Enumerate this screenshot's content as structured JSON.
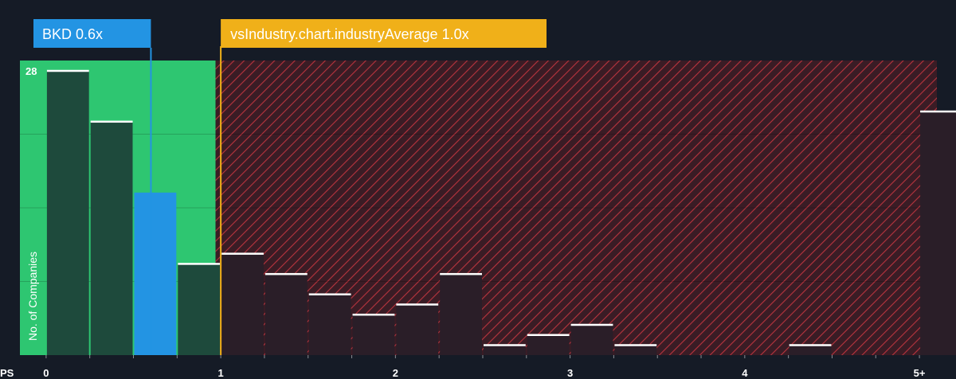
{
  "chart_data": {
    "type": "bar",
    "xlabel": "PS",
    "ylabel": "No. of Companies",
    "x_tick_labels": [
      "0",
      "1",
      "2",
      "3",
      "4",
      "5+"
    ],
    "x_tick_values": [
      0,
      1,
      2,
      3,
      4,
      5
    ],
    "y_tick_labels": [
      "28"
    ],
    "y_tick_values": [
      28
    ],
    "ylim": [
      0,
      29
    ],
    "xlim": [
      -0.15,
      5.1
    ],
    "bin_width": 0.25,
    "bins": [
      {
        "x0": 0.0,
        "value": 28
      },
      {
        "x0": 0.25,
        "value": 23
      },
      {
        "x0": 0.5,
        "value": 16
      },
      {
        "x0": 0.75,
        "value": 9
      },
      {
        "x0": 1.0,
        "value": 10
      },
      {
        "x0": 1.25,
        "value": 8
      },
      {
        "x0": 1.5,
        "value": 6
      },
      {
        "x0": 1.75,
        "value": 4
      },
      {
        "x0": 2.0,
        "value": 5
      },
      {
        "x0": 2.25,
        "value": 8
      },
      {
        "x0": 2.5,
        "value": 1
      },
      {
        "x0": 2.75,
        "value": 2
      },
      {
        "x0": 3.0,
        "value": 3
      },
      {
        "x0": 3.25,
        "value": 1
      },
      {
        "x0": 3.5,
        "value": 0
      },
      {
        "x0": 3.75,
        "value": 0
      },
      {
        "x0": 4.0,
        "value": 0
      },
      {
        "x0": 4.25,
        "value": 1
      },
      {
        "x0": 4.5,
        "value": 0
      },
      {
        "x0": 4.75,
        "value": 0
      },
      {
        "x0": 5.0,
        "value": 24
      }
    ],
    "company": {
      "label": "BKD 0.6x",
      "value": 0.6,
      "color": "#2394e3"
    },
    "industry_average": {
      "label": "vsIndustry.chart.industryAverage 1.0x",
      "value": 1.0,
      "color": "#f0b019"
    },
    "fair_zone_upper": 0.97,
    "colors": {
      "background": "#151b26",
      "fair_zone": "#2ec671",
      "fair_bar": "#1e4a3c",
      "over_zone": "#3a1c25",
      "hatch": "#b8343e",
      "over_bar": "#2a1e28",
      "bar_cap": "#ffffff"
    }
  }
}
